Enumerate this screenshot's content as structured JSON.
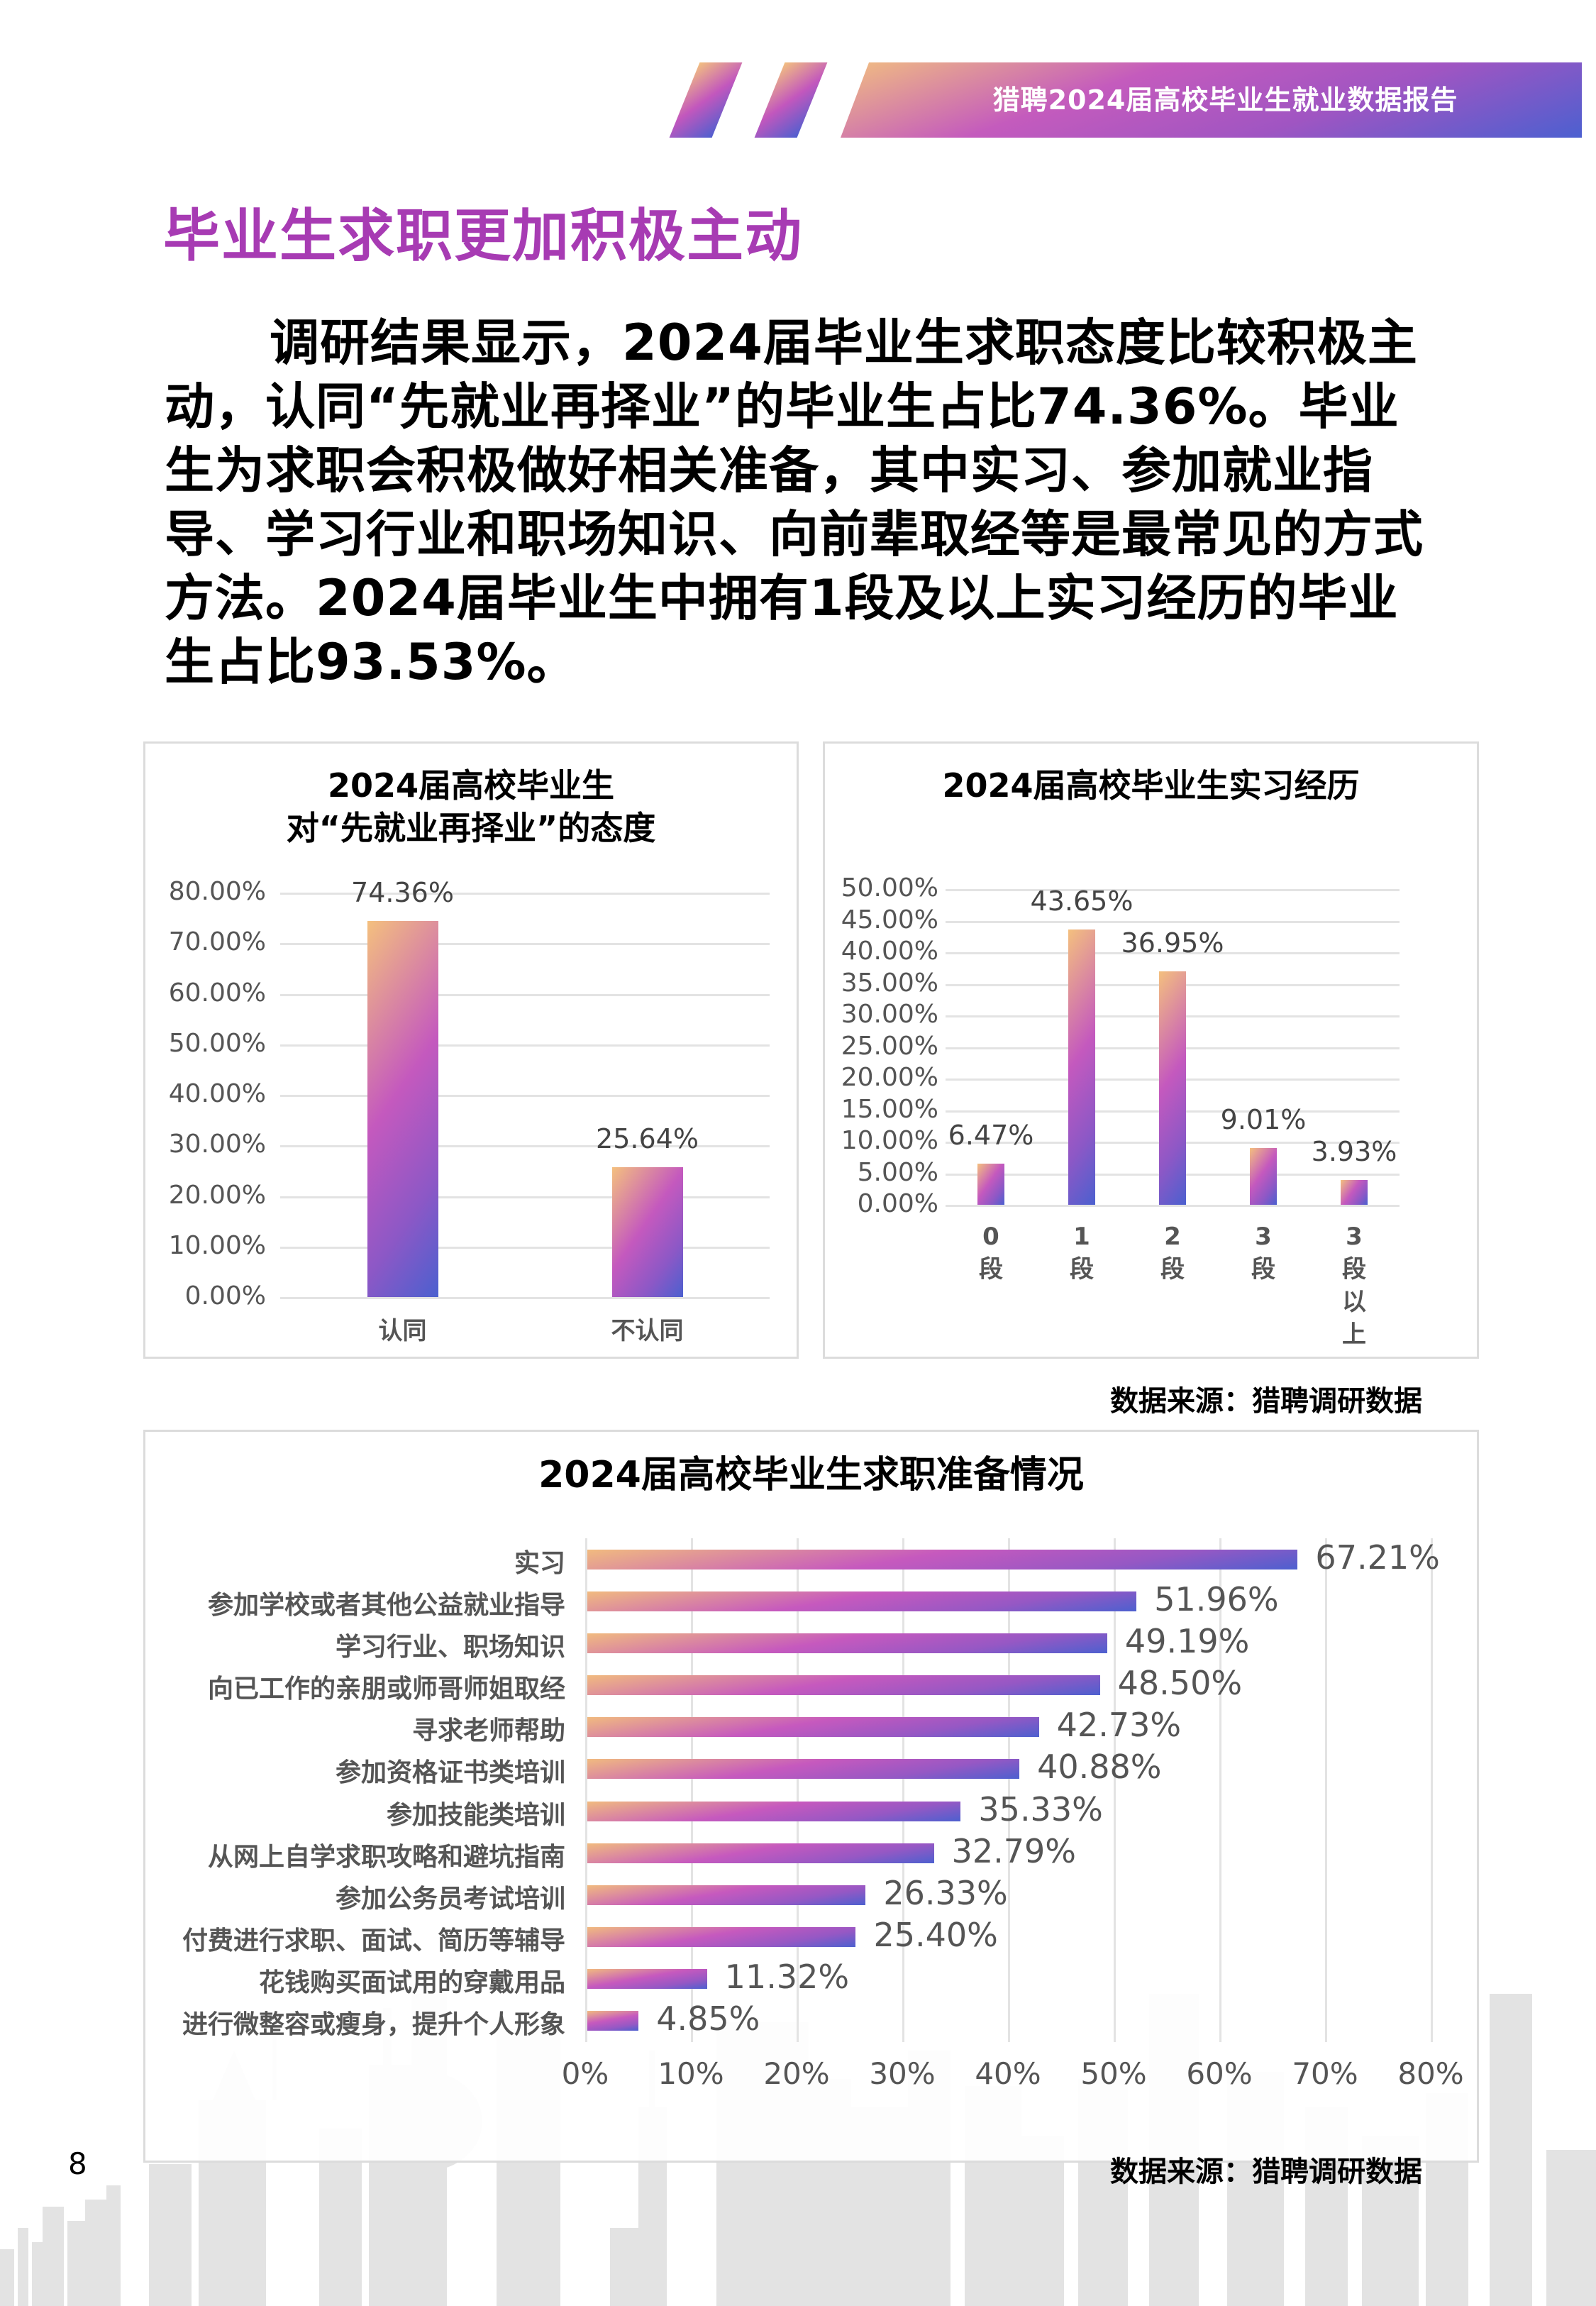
{
  "header": {
    "banner_title": "猎聘2024届高校毕业生就业数据报告"
  },
  "headline": "毕业生求职更加积极主动",
  "intro_text": "调研结果显示，2024届毕业生求职态度比较积极主动，认同“先就业再择业”的毕业生占比74.36%。毕业生为求职会积极做好相关准备，其中实习、参加就业指导、学习行业和职场知识、向前辈取经等是最常见的方式方法。2024届毕业生中拥有1段及以上实习经历的毕业生占比93.53%。",
  "source_label": "数据来源：猎聘调研数据",
  "page_number": "8",
  "colors": {
    "accent": "#a73bb3",
    "gradient_start": "#f2bf80",
    "gradient_mid": "#c257bd",
    "gradient_end": "#4f5fcf",
    "gridline": "#e3e3e3"
  },
  "chart_data": [
    {
      "type": "bar",
      "title": "2024届高校毕业生\n对“先就业再择业”的态度",
      "title_lines": [
        "2024届高校毕业生",
        "对“先就业再择业”的态度"
      ],
      "categories": [
        "认同",
        "不认同"
      ],
      "values": [
        74.36,
        25.64
      ],
      "value_labels": [
        "74.36%",
        "25.64%"
      ],
      "xlabel": "",
      "ylabel": "",
      "ylim": [
        0,
        80
      ],
      "yticks": [
        "80.00%",
        "70.00%",
        "60.00%",
        "50.00%",
        "40.00%",
        "30.00%",
        "20.00%",
        "10.00%",
        "0.00%"
      ],
      "grid": true,
      "legend": "none"
    },
    {
      "type": "bar",
      "title": "2024届高校毕业生实习经历",
      "categories": [
        "0段",
        "1段",
        "2段",
        "3段",
        "3段以上"
      ],
      "category_lines": [
        [
          "0",
          "段"
        ],
        [
          "1",
          "段"
        ],
        [
          "2",
          "段"
        ],
        [
          "3",
          "段"
        ],
        [
          "3",
          "段",
          "以",
          "上"
        ]
      ],
      "values": [
        6.47,
        43.65,
        36.95,
        9.01,
        3.93
      ],
      "value_labels": [
        "6.47%",
        "43.65%",
        "36.95%",
        "9.01%",
        "3.93%"
      ],
      "xlabel": "",
      "ylabel": "",
      "ylim": [
        0,
        50
      ],
      "yticks": [
        "50.00%",
        "45.00%",
        "40.00%",
        "35.00%",
        "30.00%",
        "25.00%",
        "20.00%",
        "15.00%",
        "10.00%",
        "5.00%",
        "0.00%"
      ],
      "grid": true,
      "legend": "none"
    },
    {
      "type": "bar",
      "orientation": "horizontal",
      "title": "2024届高校毕业生求职准备情况",
      "categories": [
        "实习",
        "参加学校或者其他公益就业指导",
        "学习行业、职场知识",
        "向已工作的亲朋或师哥师姐取经",
        "寻求老师帮助",
        "参加资格证书类培训",
        "参加技能类培训",
        "从网上自学求职攻略和避坑指南",
        "参加公务员考试培训",
        "付费进行求职、面试、简历等辅导",
        "花钱购买面试用的穿戴用品",
        "进行微整容或瘦身，提升个人形象"
      ],
      "values": [
        67.21,
        51.96,
        49.19,
        48.5,
        42.73,
        40.88,
        35.33,
        32.79,
        26.33,
        25.4,
        11.32,
        4.85
      ],
      "value_labels": [
        "67.21%",
        "51.96%",
        "49.19%",
        "48.50%",
        "42.73%",
        "40.88%",
        "35.33%",
        "32.79%",
        "26.33%",
        "25.40%",
        "11.32%",
        "4.85%"
      ],
      "xlabel": "",
      "ylabel": "",
      "xlim": [
        0,
        80
      ],
      "xticks": [
        "0%",
        "10%",
        "20%",
        "30%",
        "40%",
        "50%",
        "60%",
        "70%",
        "80%"
      ],
      "grid": true,
      "legend": "none"
    }
  ]
}
